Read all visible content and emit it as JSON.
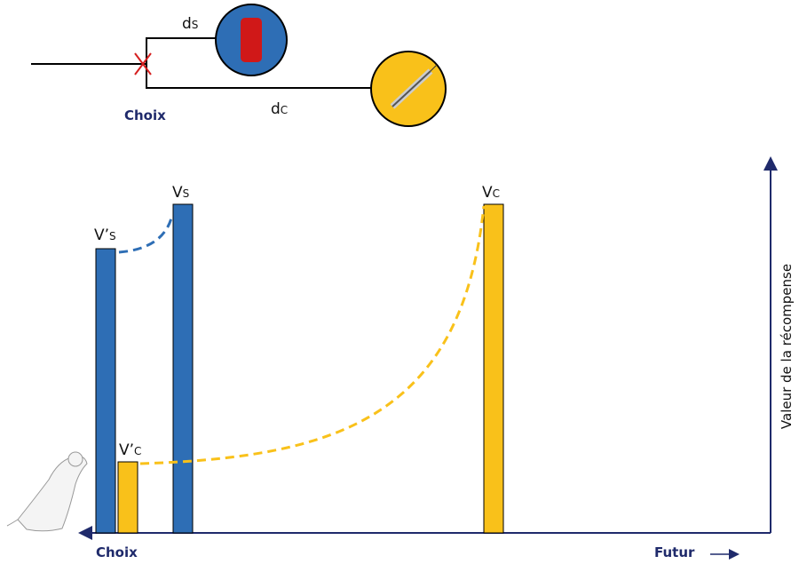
{
  "top": {
    "short_delay": {
      "main": "d",
      "sub": "s"
    },
    "long_delay": {
      "main": "d",
      "sub": "c"
    },
    "choice": "Choix"
  },
  "graph": {
    "vs_prime": {
      "main": "V’",
      "sub": "s"
    },
    "vs": {
      "main": "V",
      "sub": "s"
    },
    "vc": {
      "main": "V",
      "sub": "c"
    },
    "vc_prime": {
      "main": "V’",
      "sub": "c"
    },
    "y_label": "Valeur de la récompense",
    "x_start": "Choix",
    "x_end": "Futur"
  }
}
